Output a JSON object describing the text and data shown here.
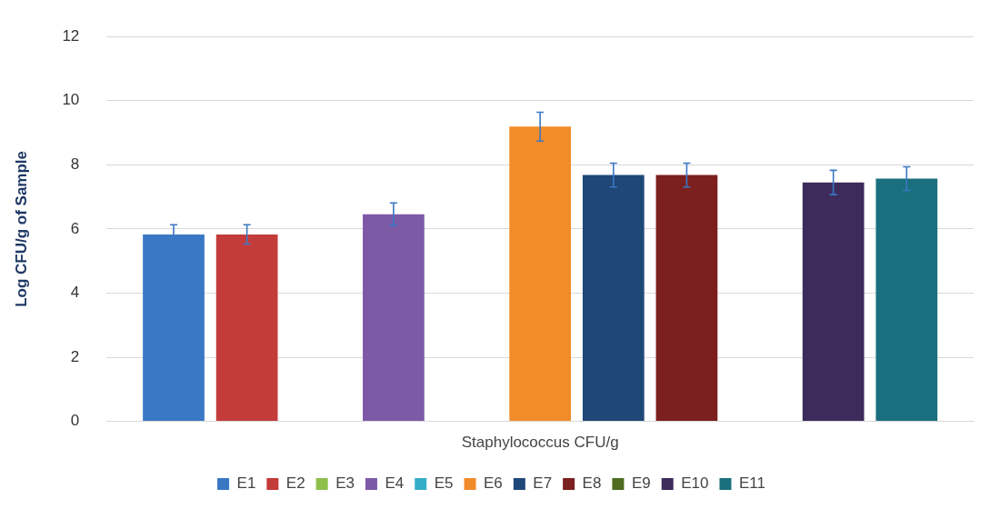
{
  "chart_data": {
    "type": "bar",
    "ylabel": "Log CFU/g of Sample",
    "categories": [
      "Staphylococcus CFU/g"
    ],
    "ylim": [
      0,
      12
    ],
    "yticks": [
      0,
      2,
      4,
      6,
      8,
      10,
      12
    ],
    "grid": "y",
    "legend": "bottom",
    "series": [
      {
        "name": "E1",
        "color": "#3a78c4",
        "values": [
          5.83
        ],
        "errors": [
          0.3
        ]
      },
      {
        "name": "E2",
        "color": "#c43c3a",
        "values": [
          5.83
        ],
        "errors": [
          0.3
        ]
      },
      {
        "name": "E3",
        "color": "#8dbf4a",
        "values": [
          0
        ],
        "errors": [
          null
        ]
      },
      {
        "name": "E4",
        "color": "#7d5aa6",
        "values": [
          6.46
        ],
        "errors": [
          0.35
        ]
      },
      {
        "name": "E5",
        "color": "#33aec8",
        "values": [
          0
        ],
        "errors": [
          null
        ]
      },
      {
        "name": "E6",
        "color": "#f18c2a",
        "values": [
          9.19
        ],
        "errors": [
          0.45
        ]
      },
      {
        "name": "E7",
        "color": "#1f4778",
        "values": [
          7.68
        ],
        "errors": [
          0.37
        ]
      },
      {
        "name": "E8",
        "color": "#7c1f1f",
        "values": [
          7.68
        ],
        "errors": [
          0.37
        ]
      },
      {
        "name": "E9",
        "color": "#4e6b1f",
        "values": [
          0
        ],
        "errors": [
          null
        ]
      },
      {
        "name": "E10",
        "color": "#3d2b5c",
        "values": [
          7.45
        ],
        "errors": [
          0.38
        ]
      },
      {
        "name": "E11",
        "color": "#1a6f7e",
        "values": [
          7.57
        ],
        "errors": [
          0.37
        ]
      }
    ]
  }
}
